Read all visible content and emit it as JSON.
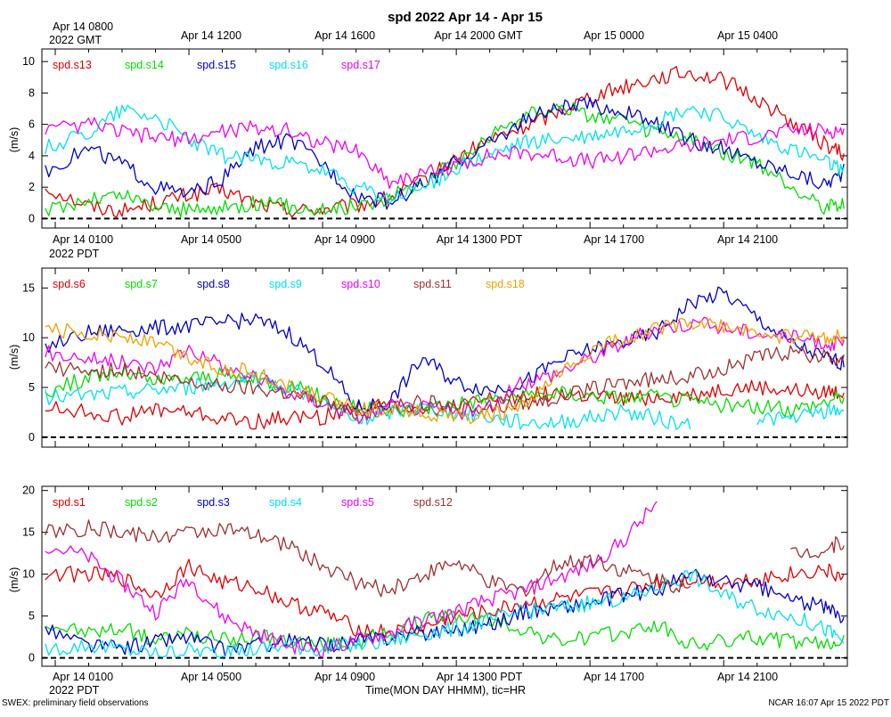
{
  "title": "spd 2022 Apr 14 - Apr 15",
  "footer_left": "SWEX: preliminary field observations",
  "footer_right": "NCAR 16:07 Apr 15 2022 PDT",
  "xlabel": "Time(MON DAY HHMM), tic=HR",
  "top_axis": {
    "first_label": "Apr 14 0800",
    "first_sub": "2022 GMT",
    "labels": [
      "Apr 14 1200",
      "Apr 14 1600",
      "Apr 14 2000 GMT",
      "Apr 15 0000",
      "Apr 15 0400"
    ]
  },
  "bottom_axis": {
    "first_label": "Apr 14 0100",
    "first_sub": "2022 PDT",
    "labels": [
      "Apr 14 0500",
      "Apr 14 0900",
      "Apr 14 1300 PDT",
      "Apr 14 1700",
      "Apr 14 2100"
    ]
  },
  "chart_data": [
    {
      "type": "line",
      "ylabel": "(m/s)",
      "x_unit": "hours since Apr 14 00:00 PDT",
      "xlim": [
        0.6,
        24.7
      ],
      "ylim": [
        -0.6,
        10.8
      ],
      "yticks": [
        0,
        2,
        4,
        6,
        8,
        10
      ],
      "zero_line": true,
      "series": [
        {
          "name": "spd.s13",
          "color": "#e00000",
          "x": [
            0.7,
            2,
            3,
            4,
            5,
            6,
            7,
            8,
            9,
            10,
            11,
            12,
            13,
            14,
            15,
            16,
            17,
            18,
            19,
            20,
            21,
            22,
            23,
            24,
            24.6
          ],
          "values": [
            2.0,
            0.8,
            0.5,
            1.0,
            1.5,
            1.8,
            1.0,
            0.5,
            0.6,
            0.8,
            1.3,
            2.4,
            3.8,
            5.0,
            5.8,
            6.8,
            7.8,
            8.4,
            9.0,
            9.3,
            8.8,
            7.6,
            6.2,
            4.8,
            4.0
          ]
        },
        {
          "name": "spd.s14",
          "color": "#00dd00",
          "x": [
            0.7,
            2,
            3,
            4,
            5,
            6,
            7,
            8,
            9,
            10,
            11,
            12,
            13,
            14,
            15,
            16,
            17,
            18,
            19,
            20,
            21,
            22,
            23,
            24,
            24.6
          ],
          "values": [
            0.5,
            1.2,
            1.5,
            0.8,
            0.5,
            0.7,
            1.0,
            0.8,
            0.6,
            0.8,
            1.3,
            2.4,
            3.6,
            5.2,
            6.6,
            7.2,
            6.6,
            6.2,
            5.4,
            5.0,
            4.2,
            3.4,
            2.0,
            0.8,
            1.0
          ]
        },
        {
          "name": "spd.s15",
          "color": "#0000cc",
          "x": [
            0.7,
            2,
            3,
            4,
            5,
            6,
            7,
            8,
            9,
            10,
            11,
            12,
            13,
            14,
            15,
            16,
            17,
            18,
            19,
            20,
            21,
            22,
            23,
            24,
            24.6
          ],
          "values": [
            3.0,
            4.5,
            3.5,
            2.0,
            1.5,
            2.5,
            4.5,
            5.0,
            3.5,
            1.5,
            1.0,
            2.2,
            3.6,
            4.8,
            6.2,
            7.0,
            7.2,
            6.8,
            6.0,
            5.0,
            4.4,
            3.6,
            3.0,
            2.2,
            3.0
          ]
        },
        {
          "name": "spd.s16",
          "color": "#00e0f0",
          "x": [
            0.7,
            2,
            3,
            4,
            5,
            6,
            7,
            8,
            9,
            10,
            11,
            12,
            13,
            14,
            15,
            16,
            17,
            18,
            19,
            20,
            21,
            22,
            23,
            24,
            24.6
          ],
          "values": [
            4.5,
            5.5,
            7.0,
            6.5,
            5.0,
            4.0,
            3.8,
            3.5,
            3.0,
            2.0,
            1.2,
            2.0,
            3.2,
            4.0,
            4.8,
            5.0,
            5.2,
            5.6,
            6.2,
            7.0,
            6.4,
            5.2,
            4.4,
            3.6,
            3.0
          ]
        },
        {
          "name": "spd.s17",
          "color": "#ee00ee",
          "x": [
            0.7,
            2,
            3,
            4,
            5,
            6,
            7,
            8,
            9,
            10,
            11,
            12,
            13,
            14,
            15,
            16,
            17,
            18,
            19,
            20,
            21,
            22,
            23,
            24,
            24.6
          ],
          "values": [
            5.5,
            6.0,
            5.5,
            5.2,
            5.0,
            5.6,
            5.8,
            5.6,
            4.8,
            4.4,
            2.4,
            2.8,
            3.4,
            4.0,
            4.2,
            4.0,
            3.6,
            4.0,
            4.4,
            4.6,
            5.0,
            5.2,
            5.6,
            5.6,
            5.6
          ]
        }
      ]
    },
    {
      "type": "line",
      "ylabel": "(m/s)",
      "x_unit": "hours since Apr 14 00:00 PDT",
      "xlim": [
        0.6,
        24.7
      ],
      "ylim": [
        -1,
        17
      ],
      "yticks": [
        0,
        5,
        10,
        15
      ],
      "zero_line": true,
      "series": [
        {
          "name": "spd.s6",
          "color": "#e00000",
          "x": [
            0.7,
            2,
            3,
            4,
            5,
            6,
            7,
            8,
            9,
            10,
            11,
            12,
            13,
            14,
            15,
            16,
            17,
            18,
            19,
            20,
            21,
            22,
            23,
            24,
            24.6
          ],
          "values": [
            3.0,
            2.5,
            2.0,
            2.8,
            2.5,
            1.8,
            1.5,
            2.0,
            2.0,
            3.0,
            3.2,
            3.0,
            2.8,
            3.8,
            4.2,
            4.4,
            4.0,
            3.8,
            4.0,
            4.2,
            4.8,
            5.0,
            4.6,
            4.6,
            4.4
          ]
        },
        {
          "name": "spd.s7",
          "color": "#00dd00",
          "x": [
            0.7,
            2,
            3,
            4,
            5,
            6,
            7,
            8,
            9,
            10,
            11,
            12,
            13,
            14,
            15,
            16,
            17,
            18,
            19,
            20,
            21,
            22,
            23,
            24,
            24.6
          ],
          "values": [
            4.5,
            6.0,
            6.5,
            5.5,
            6.0,
            6.2,
            5.8,
            5.2,
            4.0,
            3.0,
            2.5,
            3.0,
            3.5,
            3.8,
            4.0,
            4.5,
            4.2,
            4.0,
            4.0,
            3.6,
            3.2,
            3.0,
            2.8,
            3.5,
            4.2
          ]
        },
        {
          "name": "spd.s8",
          "color": "#0000cc",
          "x": [
            0.7,
            2,
            3,
            4,
            5,
            6,
            7,
            8,
            9,
            10,
            11,
            12,
            13,
            14,
            15,
            16,
            17,
            18,
            19,
            20,
            21,
            22,
            23,
            24,
            24.6
          ],
          "values": [
            9.0,
            10.5,
            10.8,
            11.0,
            11.2,
            11.5,
            11.8,
            10.5,
            7.5,
            3.0,
            3.5,
            8.0,
            5.5,
            4.8,
            5.5,
            7.5,
            8.8,
            9.5,
            10.5,
            13.5,
            14.5,
            12.0,
            9.5,
            8.0,
            7.5
          ]
        },
        {
          "name": "spd.s9",
          "color": "#00e0f0",
          "x": [
            0.7,
            2,
            3,
            4,
            5,
            6,
            7,
            8,
            9,
            10,
            11,
            12,
            13,
            14,
            15,
            16,
            17,
            18,
            19,
            20,
            21,
            22,
            23,
            24,
            24.6
          ],
          "values": [
            4.0,
            4.2,
            4.5,
            4.8,
            5.0,
            5.5,
            5.8,
            5.0,
            3.5,
            1.5,
            2.5,
            3.0,
            2.5,
            2.0,
            1.5,
            1.5,
            2.0,
            2.5,
            2.0,
            1.0,
            null,
            2.0,
            1.8,
            2.5,
            2.8
          ]
        },
        {
          "name": "spd.s10",
          "color": "#ee00ee",
          "x": [
            0.7,
            2,
            3,
            4,
            5,
            6,
            7,
            8,
            9,
            10,
            11,
            12,
            13,
            14,
            15,
            16,
            17,
            18,
            19,
            20,
            21,
            22,
            23,
            24,
            24.6
          ],
          "values": [
            8.5,
            8.0,
            7.5,
            7.0,
            9.0,
            7.0,
            6.0,
            4.5,
            3.5,
            2.0,
            3.0,
            3.0,
            2.5,
            3.0,
            5.5,
            6.5,
            8.0,
            9.5,
            11.0,
            11.5,
            11.0,
            10.5,
            10.0,
            9.5,
            9.2
          ]
        },
        {
          "name": "spd.s11",
          "color": "#a03030",
          "x": [
            0.7,
            2,
            3,
            4,
            5,
            6,
            7,
            8,
            9,
            10,
            11,
            12,
            13,
            14,
            15,
            16,
            17,
            18,
            19,
            20,
            21,
            22,
            23,
            24,
            24.6
          ],
          "values": [
            7.0,
            6.5,
            6.8,
            6.0,
            5.5,
            5.2,
            5.0,
            4.5,
            3.5,
            2.5,
            3.0,
            3.5,
            3.2,
            3.0,
            3.5,
            4.0,
            4.8,
            5.5,
            5.8,
            6.0,
            7.0,
            8.0,
            8.5,
            8.0,
            8.0
          ]
        },
        {
          "name": "spd.s18",
          "color": "#f0a000",
          "x": [
            0.7,
            2,
            3,
            4,
            5,
            6,
            7,
            8,
            9,
            10,
            11,
            12,
            13,
            14,
            15,
            16,
            17,
            18,
            19,
            20,
            21,
            22,
            23,
            24,
            24.6
          ],
          "values": [
            10.8,
            10.5,
            10.2,
            9.5,
            8.0,
            7.0,
            6.5,
            5.0,
            4.0,
            2.8,
            3.0,
            2.5,
            2.0,
            2.2,
            3.0,
            6.0,
            8.5,
            10.0,
            11.0,
            11.5,
            11.0,
            10.5,
            10.0,
            10.0,
            10.2
          ]
        }
      ]
    },
    {
      "type": "line",
      "ylabel": "(m/s)",
      "x_unit": "hours since Apr 14 00:00 PDT",
      "xlim": [
        0.6,
        24.7
      ],
      "ylim": [
        -1,
        20.5
      ],
      "yticks": [
        0,
        5,
        10,
        15,
        20
      ],
      "zero_line": true,
      "series": [
        {
          "name": "spd.s1",
          "color": "#e00000",
          "x": [
            0.7,
            2,
            3,
            4,
            5,
            6,
            7,
            8,
            9,
            10,
            11,
            12,
            13,
            14,
            15,
            16,
            17,
            18,
            19,
            20,
            21,
            22,
            23,
            24,
            24.6
          ],
          "values": [
            10.0,
            10.0,
            9.5,
            7.5,
            11.0,
            9.0,
            8.5,
            6.5,
            5.5,
            3.5,
            3.0,
            3.5,
            5.0,
            5.5,
            6.5,
            7.0,
            7.5,
            8.0,
            9.0,
            9.5,
            9.0,
            9.5,
            10.0,
            10.5,
            9.5
          ]
        },
        {
          "name": "spd.s2",
          "color": "#00dd00",
          "x": [
            0.7,
            2,
            3,
            4,
            5,
            6,
            7,
            8,
            9,
            10,
            11,
            12,
            13,
            14,
            15,
            16,
            17,
            18,
            19,
            20,
            21,
            22,
            23,
            24,
            24.6
          ],
          "values": [
            4.0,
            3.0,
            3.5,
            2.0,
            3.0,
            2.0,
            2.5,
            2.0,
            1.5,
            2.0,
            3.0,
            4.5,
            5.0,
            4.5,
            3.5,
            2.0,
            2.5,
            3.0,
            4.0,
            1.5,
            2.0,
            2.5,
            2.0,
            1.5,
            2.5
          ]
        },
        {
          "name": "spd.s3",
          "color": "#0000cc",
          "x": [
            0.7,
            2,
            3,
            4,
            5,
            6,
            7,
            8,
            9,
            10,
            11,
            12,
            13,
            14,
            15,
            16,
            17,
            18,
            19,
            20,
            21,
            22,
            23,
            24,
            24.6
          ],
          "values": [
            3.5,
            1.5,
            1.2,
            2.0,
            2.5,
            1.0,
            1.5,
            2.0,
            1.5,
            2.0,
            2.5,
            3.0,
            3.5,
            4.0,
            5.5,
            6.0,
            6.5,
            7.5,
            8.0,
            10.0,
            9.0,
            8.5,
            7.0,
            6.0,
            5.0
          ]
        },
        {
          "name": "spd.s4",
          "color": "#00e0f0",
          "x": [
            0.7,
            2,
            3,
            4,
            5,
            6,
            7,
            8,
            9,
            10,
            11,
            12,
            13,
            14,
            15,
            16,
            17,
            18,
            19,
            20,
            21,
            22,
            23,
            24,
            24.6
          ],
          "values": [
            1.0,
            1.5,
            1.0,
            0.5,
            1.0,
            0.5,
            1.0,
            1.5,
            1.0,
            1.5,
            2.0,
            3.0,
            3.5,
            4.5,
            5.5,
            6.0,
            6.5,
            7.0,
            8.5,
            10.0,
            7.5,
            6.0,
            5.0,
            3.5,
            2.0
          ]
        },
        {
          "name": "spd.s5",
          "color": "#ee00ee",
          "x": [
            0.7,
            2,
            3,
            4,
            5,
            6,
            7,
            8,
            9,
            10,
            11,
            12,
            13,
            14,
            15,
            16,
            17,
            18,
            19,
            20,
            21,
            22,
            23,
            24,
            24.6
          ],
          "values": [
            13.5,
            12.0,
            9.0,
            5.5,
            9.5,
            5.0,
            3.0,
            1.5,
            1.0,
            2.0,
            3.0,
            4.5,
            5.5,
            7.0,
            8.0,
            9.5,
            11.0,
            14.0,
            18.5,
            null,
            null,
            null,
            null,
            null,
            null
          ]
        },
        {
          "name": "spd.s12",
          "color": "#a03030",
          "x": [
            0.7,
            2,
            3,
            4,
            5,
            6,
            7,
            8,
            9,
            10,
            11,
            12,
            13,
            14,
            15,
            16,
            17,
            18,
            19,
            20,
            21,
            22,
            23,
            24,
            24.6
          ],
          "values": [
            15.0,
            15.5,
            15.0,
            14.5,
            15.0,
            15.5,
            14.5,
            13.5,
            11.0,
            9.0,
            8.0,
            10.0,
            11.5,
            9.0,
            8.0,
            11.0,
            12.0,
            10.5,
            9.5,
            8.0,
            null,
            null,
            12.5,
            13.0,
            14.0
          ]
        }
      ]
    }
  ]
}
